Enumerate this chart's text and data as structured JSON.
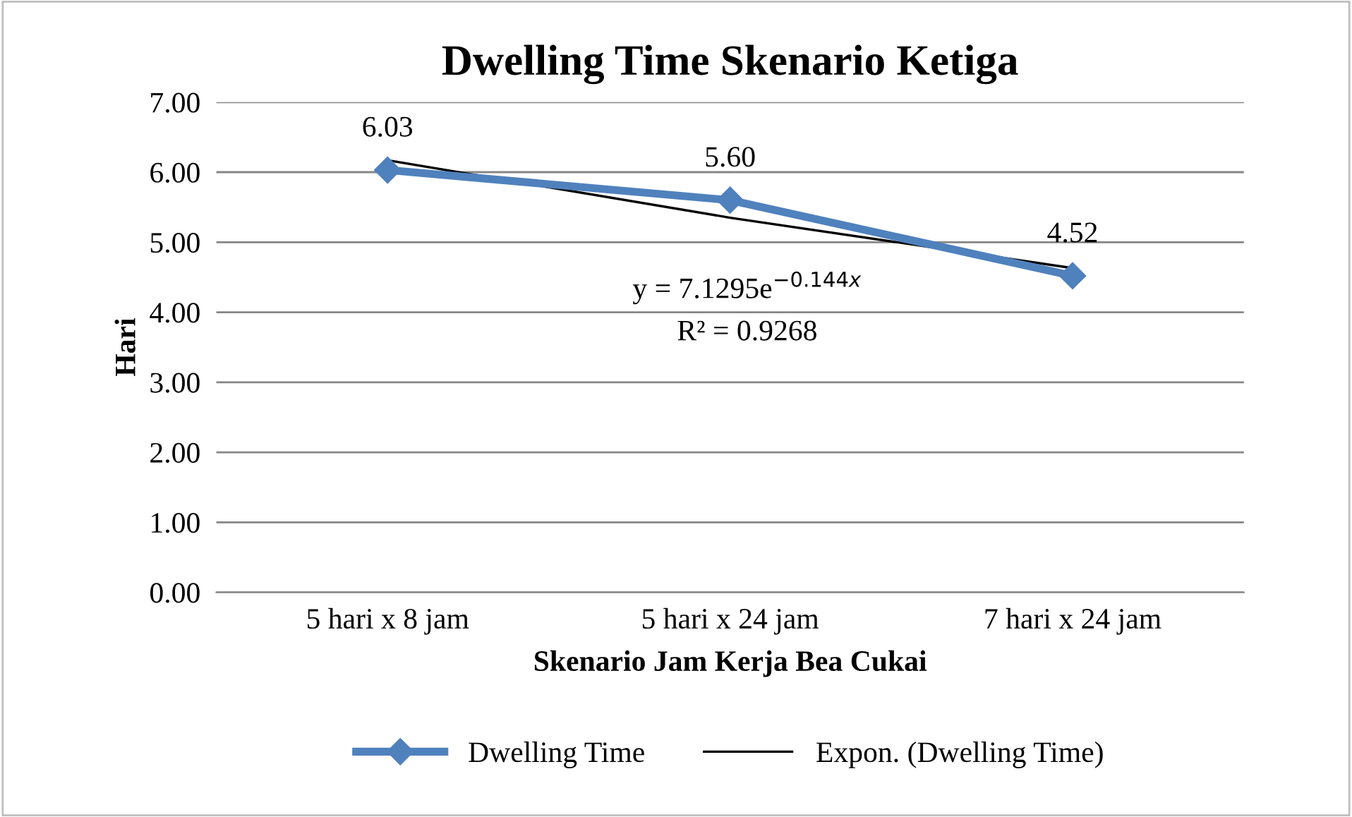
{
  "chart_data": {
    "type": "line",
    "title": "Dwelling Time Skenario Ketiga",
    "xlabel": "Skenario Jam Kerja Bea Cukai",
    "ylabel": "Hari",
    "categories": [
      "5 hari x 8 jam",
      "5 hari x 24 jam",
      "7 hari x 24 jam"
    ],
    "series": [
      {
        "name": "Dwelling Time",
        "color": "#4f81bd",
        "values": [
          6.03,
          5.6,
          4.52
        ],
        "value_labels": [
          "6.03",
          "5.60",
          "4.52"
        ],
        "marker": "diamond"
      },
      {
        "name": "Expon. (Dwelling Time)",
        "color": "#000000",
        "values": [
          6.17,
          5.35,
          4.63
        ],
        "marker": "none"
      }
    ],
    "ylim": [
      0,
      7
    ],
    "yticks": [
      {
        "value": 0,
        "label": "0.00"
      },
      {
        "value": 1,
        "label": "1.00"
      },
      {
        "value": 2,
        "label": "2.00"
      },
      {
        "value": 3,
        "label": "3.00"
      },
      {
        "value": 4,
        "label": "4.00"
      },
      {
        "value": 5,
        "label": "5.00"
      },
      {
        "value": 6,
        "label": "6.00"
      },
      {
        "value": 7,
        "label": "7.00"
      }
    ],
    "grid": "y",
    "legend": "bottom",
    "annotations": [
      "y = 7.1295e$^{−0.144x}$",
      "R² = 0.9268"
    ]
  }
}
